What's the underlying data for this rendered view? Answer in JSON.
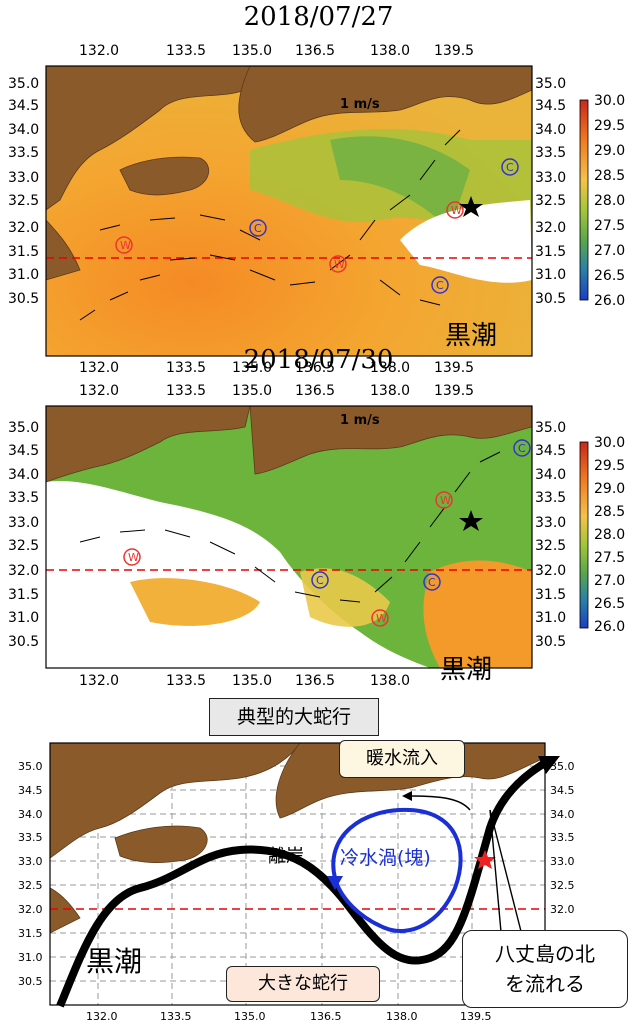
{
  "panels": [
    {
      "title": "2018/07/27",
      "scale_label": "1 m/s",
      "region_label": "黒潮",
      "lon_ticks": [
        "132.0",
        "133.5",
        "135.0",
        "136.5",
        "138.0",
        "139.5"
      ],
      "lat_ticks": [
        "35.0",
        "34.5",
        "34.0",
        "33.5",
        "33.0",
        "32.5",
        "32.0",
        "31.5",
        "31.0",
        "30.5"
      ],
      "colorbar_ticks": [
        "30.0",
        "29.5",
        "29.0",
        "28.5",
        "28.0",
        "27.5",
        "27.0",
        "26.5",
        "26.0"
      ],
      "eddy_labels": [
        "W",
        "W",
        "C",
        "C",
        "W",
        "C",
        "C"
      ]
    },
    {
      "title": "2018/07/30",
      "scale_label": "1 m/s",
      "region_label": "黒潮",
      "lon_ticks": [
        "132.0",
        "133.5",
        "135.0",
        "136.5",
        "138.0",
        "139.5"
      ],
      "lat_ticks": [
        "35.0",
        "34.5",
        "34.0",
        "33.5",
        "33.0",
        "32.5",
        "32.0",
        "31.5",
        "31.0",
        "30.5"
      ],
      "colorbar_ticks": [
        "30.0",
        "29.5",
        "29.0",
        "28.5",
        "28.0",
        "27.5",
        "27.0",
        "26.5",
        "26.0"
      ],
      "eddy_labels": [
        "W",
        "W",
        "C",
        "C",
        "W",
        "C"
      ]
    }
  ],
  "schematic": {
    "title": "典型的大蛇行",
    "lon_ticks": [
      "132.0",
      "133.5",
      "135.0",
      "136.5",
      "138.0",
      "139.5"
    ],
    "lat_ticks": [
      "35.0",
      "34.5",
      "34.0",
      "33.5",
      "33.0",
      "32.5",
      "32.0",
      "31.5",
      "31.0",
      "30.5"
    ],
    "labels": {
      "warm_inflow": "暖水流入",
      "offshore": "離岸",
      "cold_eddy": "冷水渦(塊)",
      "kuroshio": "黒潮",
      "big_meander": "大きな蛇行",
      "hachijo_1": "八丈島の北",
      "hachijo_2": "を流れる"
    }
  },
  "colors": {
    "land": "#8b5a2b",
    "warm_sst": "#f39a2a",
    "cool_sst": "#6db43c",
    "cold_eddy_line": "#1a2fd6",
    "kuroshio_line": "#000000",
    "reference_lat_line": "#e00000"
  }
}
